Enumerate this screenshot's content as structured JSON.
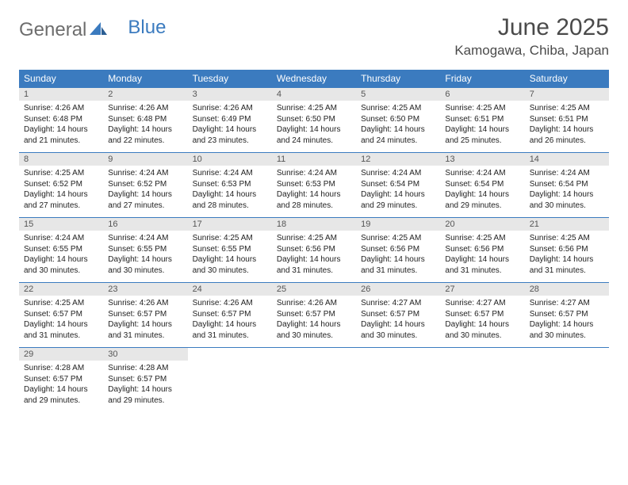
{
  "logo": {
    "text1": "General",
    "text2": "Blue"
  },
  "title": {
    "month": "June 2025",
    "location": "Kamogawa, Chiba, Japan"
  },
  "colors": {
    "header_bg": "#3b7bbf",
    "header_fg": "#ffffff",
    "daynum_bg": "#e7e7e7",
    "rule": "#3b7bbf"
  },
  "weekdays": [
    "Sunday",
    "Monday",
    "Tuesday",
    "Wednesday",
    "Thursday",
    "Friday",
    "Saturday"
  ],
  "weeks": [
    [
      {
        "n": "1",
        "sr": "Sunrise: 4:26 AM",
        "ss": "Sunset: 6:48 PM",
        "dl1": "Daylight: 14 hours",
        "dl2": "and 21 minutes."
      },
      {
        "n": "2",
        "sr": "Sunrise: 4:26 AM",
        "ss": "Sunset: 6:48 PM",
        "dl1": "Daylight: 14 hours",
        "dl2": "and 22 minutes."
      },
      {
        "n": "3",
        "sr": "Sunrise: 4:26 AM",
        "ss": "Sunset: 6:49 PM",
        "dl1": "Daylight: 14 hours",
        "dl2": "and 23 minutes."
      },
      {
        "n": "4",
        "sr": "Sunrise: 4:25 AM",
        "ss": "Sunset: 6:50 PM",
        "dl1": "Daylight: 14 hours",
        "dl2": "and 24 minutes."
      },
      {
        "n": "5",
        "sr": "Sunrise: 4:25 AM",
        "ss": "Sunset: 6:50 PM",
        "dl1": "Daylight: 14 hours",
        "dl2": "and 24 minutes."
      },
      {
        "n": "6",
        "sr": "Sunrise: 4:25 AM",
        "ss": "Sunset: 6:51 PM",
        "dl1": "Daylight: 14 hours",
        "dl2": "and 25 minutes."
      },
      {
        "n": "7",
        "sr": "Sunrise: 4:25 AM",
        "ss": "Sunset: 6:51 PM",
        "dl1": "Daylight: 14 hours",
        "dl2": "and 26 minutes."
      }
    ],
    [
      {
        "n": "8",
        "sr": "Sunrise: 4:25 AM",
        "ss": "Sunset: 6:52 PM",
        "dl1": "Daylight: 14 hours",
        "dl2": "and 27 minutes."
      },
      {
        "n": "9",
        "sr": "Sunrise: 4:24 AM",
        "ss": "Sunset: 6:52 PM",
        "dl1": "Daylight: 14 hours",
        "dl2": "and 27 minutes."
      },
      {
        "n": "10",
        "sr": "Sunrise: 4:24 AM",
        "ss": "Sunset: 6:53 PM",
        "dl1": "Daylight: 14 hours",
        "dl2": "and 28 minutes."
      },
      {
        "n": "11",
        "sr": "Sunrise: 4:24 AM",
        "ss": "Sunset: 6:53 PM",
        "dl1": "Daylight: 14 hours",
        "dl2": "and 28 minutes."
      },
      {
        "n": "12",
        "sr": "Sunrise: 4:24 AM",
        "ss": "Sunset: 6:54 PM",
        "dl1": "Daylight: 14 hours",
        "dl2": "and 29 minutes."
      },
      {
        "n": "13",
        "sr": "Sunrise: 4:24 AM",
        "ss": "Sunset: 6:54 PM",
        "dl1": "Daylight: 14 hours",
        "dl2": "and 29 minutes."
      },
      {
        "n": "14",
        "sr": "Sunrise: 4:24 AM",
        "ss": "Sunset: 6:54 PM",
        "dl1": "Daylight: 14 hours",
        "dl2": "and 30 minutes."
      }
    ],
    [
      {
        "n": "15",
        "sr": "Sunrise: 4:24 AM",
        "ss": "Sunset: 6:55 PM",
        "dl1": "Daylight: 14 hours",
        "dl2": "and 30 minutes."
      },
      {
        "n": "16",
        "sr": "Sunrise: 4:24 AM",
        "ss": "Sunset: 6:55 PM",
        "dl1": "Daylight: 14 hours",
        "dl2": "and 30 minutes."
      },
      {
        "n": "17",
        "sr": "Sunrise: 4:25 AM",
        "ss": "Sunset: 6:55 PM",
        "dl1": "Daylight: 14 hours",
        "dl2": "and 30 minutes."
      },
      {
        "n": "18",
        "sr": "Sunrise: 4:25 AM",
        "ss": "Sunset: 6:56 PM",
        "dl1": "Daylight: 14 hours",
        "dl2": "and 31 minutes."
      },
      {
        "n": "19",
        "sr": "Sunrise: 4:25 AM",
        "ss": "Sunset: 6:56 PM",
        "dl1": "Daylight: 14 hours",
        "dl2": "and 31 minutes."
      },
      {
        "n": "20",
        "sr": "Sunrise: 4:25 AM",
        "ss": "Sunset: 6:56 PM",
        "dl1": "Daylight: 14 hours",
        "dl2": "and 31 minutes."
      },
      {
        "n": "21",
        "sr": "Sunrise: 4:25 AM",
        "ss": "Sunset: 6:56 PM",
        "dl1": "Daylight: 14 hours",
        "dl2": "and 31 minutes."
      }
    ],
    [
      {
        "n": "22",
        "sr": "Sunrise: 4:25 AM",
        "ss": "Sunset: 6:57 PM",
        "dl1": "Daylight: 14 hours",
        "dl2": "and 31 minutes."
      },
      {
        "n": "23",
        "sr": "Sunrise: 4:26 AM",
        "ss": "Sunset: 6:57 PM",
        "dl1": "Daylight: 14 hours",
        "dl2": "and 31 minutes."
      },
      {
        "n": "24",
        "sr": "Sunrise: 4:26 AM",
        "ss": "Sunset: 6:57 PM",
        "dl1": "Daylight: 14 hours",
        "dl2": "and 31 minutes."
      },
      {
        "n": "25",
        "sr": "Sunrise: 4:26 AM",
        "ss": "Sunset: 6:57 PM",
        "dl1": "Daylight: 14 hours",
        "dl2": "and 30 minutes."
      },
      {
        "n": "26",
        "sr": "Sunrise: 4:27 AM",
        "ss": "Sunset: 6:57 PM",
        "dl1": "Daylight: 14 hours",
        "dl2": "and 30 minutes."
      },
      {
        "n": "27",
        "sr": "Sunrise: 4:27 AM",
        "ss": "Sunset: 6:57 PM",
        "dl1": "Daylight: 14 hours",
        "dl2": "and 30 minutes."
      },
      {
        "n": "28",
        "sr": "Sunrise: 4:27 AM",
        "ss": "Sunset: 6:57 PM",
        "dl1": "Daylight: 14 hours",
        "dl2": "and 30 minutes."
      }
    ],
    [
      {
        "n": "29",
        "sr": "Sunrise: 4:28 AM",
        "ss": "Sunset: 6:57 PM",
        "dl1": "Daylight: 14 hours",
        "dl2": "and 29 minutes."
      },
      {
        "n": "30",
        "sr": "Sunrise: 4:28 AM",
        "ss": "Sunset: 6:57 PM",
        "dl1": "Daylight: 14 hours",
        "dl2": "and 29 minutes."
      },
      {
        "empty": true
      },
      {
        "empty": true
      },
      {
        "empty": true
      },
      {
        "empty": true
      },
      {
        "empty": true
      }
    ]
  ]
}
